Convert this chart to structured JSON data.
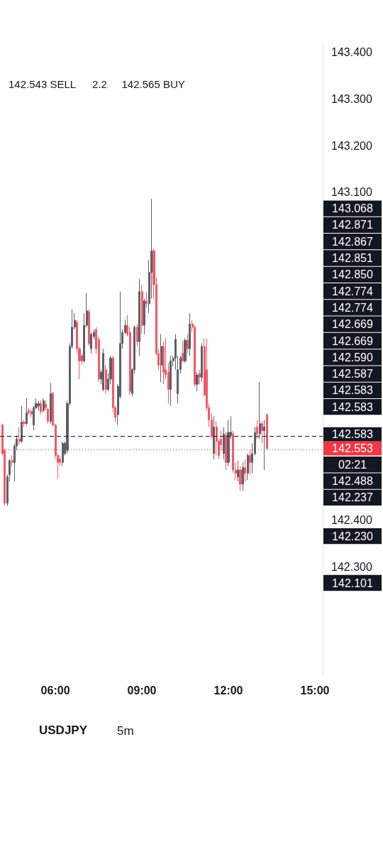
{
  "chart_data": {
    "type": "candlestick",
    "title": "USDJPY",
    "subtitle": "5m",
    "x": [
      4.1667,
      4.25,
      4.3333,
      4.4167,
      4.5,
      4.5833,
      4.6667,
      4.75,
      4.8333,
      4.9167,
      5,
      5.0833,
      5.1667,
      5.25,
      5.3333,
      5.4167,
      5.5,
      5.5833,
      5.6667,
      5.75,
      5.8333,
      5.9167,
      6,
      6.0833,
      6.1667,
      6.25,
      6.3333,
      6.4167,
      6.5,
      6.5833,
      6.6667,
      6.75,
      6.8333,
      6.9167,
      7,
      7.0833,
      7.1667,
      7.25,
      7.3333,
      7.4167,
      7.5,
      7.5833,
      7.6667,
      7.75,
      7.8333,
      7.9167,
      8,
      8.0833,
      8.1667,
      8.25,
      8.3333,
      8.4167,
      8.5,
      8.5833,
      8.6667,
      8.75,
      8.8333,
      8.9167,
      9,
      9.0833,
      9.1667,
      9.25,
      9.3333,
      9.4167,
      9.5,
      9.5833,
      9.6667,
      9.75,
      9.8333,
      9.9167,
      10,
      10.0833,
      10.1667,
      10.25,
      10.3333,
      10.4167,
      10.5,
      10.5833,
      10.6667,
      10.75,
      10.8333,
      10.9167,
      11,
      11.0833,
      11.1667,
      11.25,
      11.3333,
      11.4167,
      11.5,
      11.5833,
      11.6667,
      11.75,
      11.8333,
      11.9167,
      12,
      12.0833,
      12.1667,
      12.25,
      12.3333,
      12.4167,
      12.5,
      12.5833,
      12.6667,
      12.75,
      12.8333,
      12.9167,
      13,
      13.0833,
      13.1667,
      13.25,
      13.3333
    ],
    "ohlc": [
      [
        142.603,
        142.606,
        142.538,
        142.542
      ],
      [
        142.549,
        142.553,
        142.431,
        142.436
      ],
      [
        142.436,
        142.497,
        142.43,
        142.492
      ],
      [
        142.497,
        142.53,
        142.482,
        142.527
      ],
      [
        142.527,
        142.538,
        142.515,
        142.523
      ],
      [
        142.523,
        142.564,
        142.482,
        142.558
      ],
      [
        142.558,
        142.581,
        142.549,
        142.573
      ],
      [
        142.573,
        142.599,
        142.561,
        142.568
      ],
      [
        142.568,
        142.644,
        142.564,
        142.609
      ],
      [
        142.609,
        142.614,
        142.599,
        142.606
      ],
      [
        142.606,
        142.66,
        142.603,
        142.629
      ],
      [
        142.634,
        142.64,
        142.625,
        142.629
      ],
      [
        142.632,
        142.637,
        142.619,
        142.626
      ],
      [
        142.603,
        142.644,
        142.591,
        142.64
      ],
      [
        142.64,
        142.66,
        142.637,
        142.649
      ],
      [
        142.644,
        142.655,
        142.634,
        142.649
      ],
      [
        142.649,
        142.655,
        142.626,
        142.632
      ],
      [
        142.634,
        142.66,
        142.629,
        142.655
      ],
      [
        142.648,
        142.655,
        142.634,
        142.64
      ],
      [
        142.637,
        142.64,
        142.606,
        142.611
      ],
      [
        142.611,
        142.693,
        142.606,
        142.67
      ],
      [
        142.672,
        142.672,
        142.599,
        142.603
      ],
      [
        142.603,
        142.606,
        142.53,
        142.538
      ],
      [
        142.538,
        142.542,
        142.488,
        142.523
      ],
      [
        142.53,
        142.538,
        142.515,
        142.523
      ],
      [
        142.523,
        142.568,
        142.515,
        142.564
      ],
      [
        142.542,
        142.568,
        142.538,
        142.564
      ],
      [
        142.549,
        142.655,
        142.542,
        142.649
      ],
      [
        142.649,
        142.777,
        142.644,
        142.771
      ],
      [
        142.771,
        142.85,
        142.766,
        142.812
      ],
      [
        142.812,
        142.842,
        142.807,
        142.827
      ],
      [
        142.823,
        142.827,
        142.756,
        142.766
      ],
      [
        142.766,
        142.771,
        142.701,
        142.74
      ],
      [
        142.751,
        142.756,
        142.731,
        142.74
      ],
      [
        142.74,
        142.842,
        142.736,
        142.816
      ],
      [
        142.816,
        142.885,
        142.812,
        142.847
      ],
      [
        142.845,
        142.85,
        142.771,
        142.777
      ],
      [
        142.766,
        142.801,
        142.756,
        142.797
      ],
      [
        142.792,
        142.807,
        142.786,
        142.801
      ],
      [
        142.807,
        142.812,
        142.756,
        142.766
      ],
      [
        142.786,
        142.792,
        142.695,
        142.701
      ],
      [
        142.701,
        142.721,
        142.69,
        142.716
      ],
      [
        142.679,
        142.766,
        142.675,
        142.756
      ],
      [
        142.721,
        142.731,
        142.67,
        142.679
      ],
      [
        142.679,
        142.713,
        142.675,
        142.701
      ],
      [
        142.701,
        142.751,
        142.69,
        142.746
      ],
      [
        142.746,
        142.751,
        142.629,
        142.64
      ],
      [
        142.64,
        142.644,
        142.609,
        142.619
      ],
      [
        142.625,
        142.69,
        142.603,
        142.686
      ],
      [
        142.664,
        142.888,
        142.66,
        142.777
      ],
      [
        142.777,
        142.807,
        142.766,
        142.801
      ],
      [
        142.801,
        142.827,
        142.797,
        142.816
      ],
      [
        142.816,
        142.838,
        142.792,
        142.797
      ],
      [
        142.801,
        142.812,
        142.667,
        142.675
      ],
      [
        142.67,
        142.725,
        142.664,
        142.721
      ],
      [
        142.721,
        142.816,
        142.713,
        142.812
      ],
      [
        142.812,
        142.819,
        142.771,
        142.781
      ],
      [
        142.781,
        142.915,
        142.751,
        142.888
      ],
      [
        142.888,
        142.903,
        142.797,
        142.816
      ],
      [
        142.816,
        142.873,
        142.797,
        142.868
      ],
      [
        142.868,
        142.888,
        142.853,
        142.862
      ],
      [
        142.862,
        142.956,
        142.842,
        142.929
      ],
      [
        142.929,
        143.086,
        142.873,
        142.975
      ],
      [
        142.975,
        142.98,
        142.873,
        142.903
      ],
      [
        142.903,
        142.918,
        142.751,
        142.756
      ],
      [
        142.756,
        142.766,
        142.721,
        142.731
      ],
      [
        142.731,
        142.797,
        142.695,
        142.771
      ],
      [
        142.771,
        142.781,
        142.69,
        142.716
      ],
      [
        142.721,
        142.789,
        142.701,
        142.71
      ],
      [
        142.716,
        142.736,
        142.649,
        142.679
      ],
      [
        142.679,
        142.751,
        142.644,
        142.74
      ],
      [
        142.74,
        142.751,
        142.728,
        142.746
      ],
      [
        142.746,
        142.797,
        142.721,
        142.786
      ],
      [
        142.67,
        142.751,
        142.649,
        142.721
      ],
      [
        142.721,
        142.751,
        142.713,
        142.746
      ],
      [
        142.756,
        142.781,
        142.736,
        142.74
      ],
      [
        142.74,
        142.788,
        142.736,
        142.784
      ],
      [
        142.784,
        142.797,
        142.756,
        142.766
      ],
      [
        142.766,
        142.842,
        142.751,
        142.819
      ],
      [
        142.819,
        142.827,
        142.801,
        142.812
      ],
      [
        142.812,
        142.816,
        142.686,
        142.69
      ],
      [
        142.69,
        142.716,
        142.675,
        142.71
      ],
      [
        142.713,
        142.721,
        142.69,
        142.705
      ],
      [
        142.705,
        142.778,
        142.695,
        142.771
      ],
      [
        142.771,
        142.788,
        142.664,
        142.667
      ],
      [
        142.721,
        142.788,
        142.634,
        142.64
      ],
      [
        142.64,
        142.649,
        142.599,
        142.614
      ],
      [
        142.614,
        142.629,
        142.573,
        142.579
      ],
      [
        142.542,
        142.622,
        142.53,
        142.599
      ],
      [
        142.599,
        142.611,
        142.538,
        142.568
      ],
      [
        142.568,
        142.573,
        142.53,
        142.538
      ],
      [
        142.573,
        142.591,
        142.549,
        142.561
      ],
      [
        142.542,
        142.599,
        142.53,
        142.584
      ],
      [
        142.581,
        142.588,
        142.507,
        142.523
      ],
      [
        142.523,
        142.614,
        142.515,
        142.587
      ],
      [
        142.581,
        142.622,
        142.573,
        142.588
      ],
      [
        142.584,
        142.591,
        142.5,
        142.507
      ],
      [
        142.507,
        142.523,
        142.485,
        142.5
      ],
      [
        142.492,
        142.527,
        142.482,
        142.507
      ],
      [
        142.507,
        142.515,
        142.462,
        142.477
      ],
      [
        142.477,
        142.523,
        142.462,
        142.512
      ],
      [
        142.512,
        142.53,
        142.482,
        142.5
      ],
      [
        142.5,
        142.542,
        142.485,
        142.538
      ],
      [
        142.538,
        142.549,
        142.497,
        142.523
      ],
      [
        142.523,
        142.564,
        142.5,
        142.542
      ],
      [
        142.542,
        142.599,
        142.538,
        142.587
      ],
      [
        142.599,
        142.614,
        142.573,
        142.584
      ],
      [
        142.584,
        142.695,
        142.573,
        142.606
      ],
      [
        142.606,
        142.611,
        142.564,
        142.591
      ],
      [
        142.591,
        142.614,
        142.507,
        142.599
      ],
      [
        142.625,
        142.629,
        142.549,
        142.553
      ]
    ],
    "colors": [
      "#f05a66",
      "#f05a66",
      "#5d606b",
      "#5d606b",
      "#f05a66",
      "#5d606b",
      "#5d606b",
      "#f05a66",
      "#5d606b",
      "#f05a66",
      "#5d606b",
      "#f05a66",
      "#f05a66",
      "#5d606b",
      "#5d606b",
      "#5d606b",
      "#f05a66",
      "#5d606b",
      "#f05a66",
      "#f05a66",
      "#5d606b",
      "#f05a66",
      "#f05a66",
      "#f05a66",
      "#f05a66",
      "#5d606b",
      "#5d606b",
      "#5d606b",
      "#5d606b",
      "#5d606b",
      "#5d606b",
      "#f05a66",
      "#f05a66",
      "#f05a66",
      "#5d606b",
      "#5d606b",
      "#f05a66",
      "#5d606b",
      "#5d606b",
      "#f05a66",
      "#f05a66",
      "#5d606b",
      "#5d606b",
      "#f05a66",
      "#5d606b",
      "#5d606b",
      "#f05a66",
      "#f05a66",
      "#5d606b",
      "#5d606b",
      "#5d606b",
      "#5d606b",
      "#f05a66",
      "#f05a66",
      "#5d606b",
      "#5d606b",
      "#f05a66",
      "#5d606b",
      "#f05a66",
      "#5d606b",
      "#f05a66",
      "#5d606b",
      "#5d606b",
      "#f05a66",
      "#f05a66",
      "#f05a66",
      "#5d606b",
      "#f05a66",
      "#f05a66",
      "#f05a66",
      "#5d606b",
      "#5d606b",
      "#5d606b",
      "#5d606b",
      "#5d606b",
      "#f05a66",
      "#5d606b",
      "#f05a66",
      "#5d606b",
      "#f05a66",
      "#f05a66",
      "#5d606b",
      "#f05a66",
      "#5d606b",
      "#f05a66",
      "#f05a66",
      "#f05a66",
      "#f05a66",
      "#5d606b",
      "#f05a66",
      "#f05a66",
      "#f05a66",
      "#5d606b",
      "#f05a66",
      "#5d606b",
      "#5d606b",
      "#f05a66",
      "#f05a66",
      "#5d606b",
      "#f05a66",
      "#5d606b",
      "#f05a66",
      "#5d606b",
      "#f05a66",
      "#5d606b",
      "#5d606b",
      "#f05a66",
      "#5d606b",
      "#f05a66",
      "#5d606b",
      "#f05a66"
    ],
    "xlim": [
      4.08,
      15.27
    ],
    "xticks": [
      {
        "value": 6,
        "label": "06:00"
      },
      {
        "value": 9,
        "label": "09:00"
      },
      {
        "value": 12,
        "label": "12:00"
      },
      {
        "value": 15,
        "label": "15:00"
      }
    ],
    "ylim": [
      142.07,
      143.42
    ],
    "yticks": [
      {
        "value": 142.3,
        "label": "142.300"
      },
      {
        "value": 142.4,
        "label": "142.400"
      },
      {
        "value": 143.1,
        "label": "143.100"
      },
      {
        "value": 143.2,
        "label": "143.200"
      },
      {
        "value": 143.3,
        "label": "143.300"
      },
      {
        "value": 143.4,
        "label": "143.400"
      }
    ],
    "ref_lines": [
      {
        "axis": "y",
        "value": 142.583,
        "label": "142.583",
        "color": "#131722",
        "line_style": "dashed"
      },
      {
        "axis": "y",
        "value": 142.553,
        "label": "142.553",
        "color": "#f23645",
        "line_style": "dotted"
      }
    ],
    "annotations": [
      "142.543 SELL",
      "2.2",
      "142.565 BUY",
      "143.068",
      "142.871",
      "142.867",
      "142.851",
      "142.850",
      "142.774",
      "142.774",
      "142.669",
      "142.669",
      "142.590",
      "142.587",
      "142.583",
      "142.583",
      "02:21",
      "142.488",
      "142.237",
      "142.230",
      "142.101"
    ]
  }
}
